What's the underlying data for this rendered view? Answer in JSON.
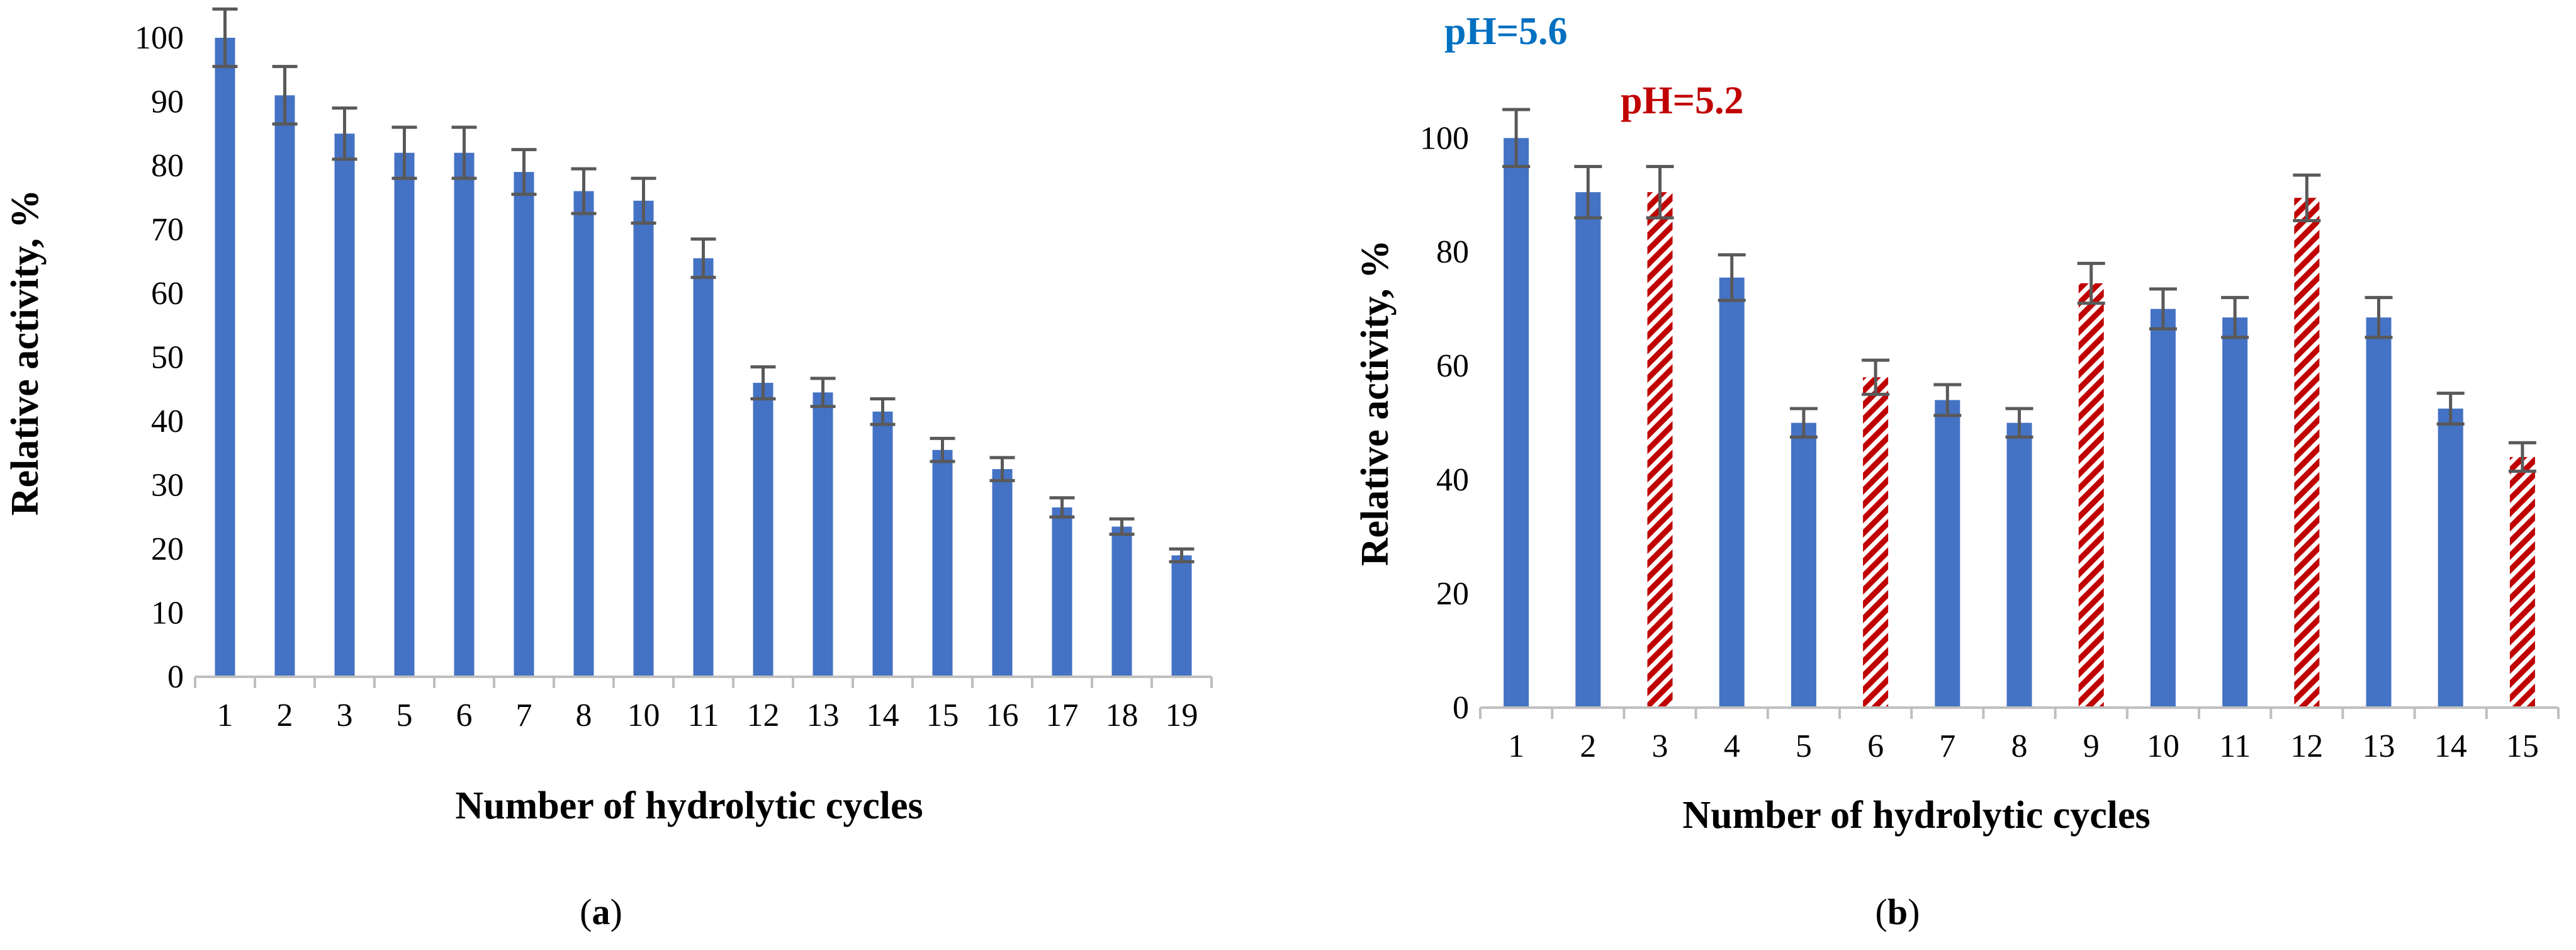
{
  "colors": {
    "blue_bar": "#4472C4",
    "red_bar": "#C00000",
    "error_bar": "#595959",
    "axis": "#BFBFBF",
    "legend_blue": "#0070C0",
    "legend_red": "#C00000"
  },
  "chart_data": [
    {
      "id": "a",
      "type": "bar",
      "panel_label": {
        "prefix": "(",
        "letter": "a",
        "suffix": ")"
      },
      "xlabel": "Number of hydrolytic cycles",
      "ylabel": "Relative activity, %",
      "ylim": [
        0,
        100
      ],
      "yticks": [
        0,
        10,
        20,
        30,
        40,
        50,
        60,
        70,
        80,
        90,
        100
      ],
      "grid": false,
      "categories": [
        "1",
        "2",
        "3",
        "5",
        "6",
        "7",
        "8",
        "10",
        "11",
        "12",
        "13",
        "14",
        "15",
        "16",
        "17",
        "18",
        "19"
      ],
      "values": [
        100,
        91,
        85,
        82,
        82,
        79,
        76,
        74.5,
        65.5,
        46,
        44.5,
        41.5,
        35.5,
        32.5,
        26.5,
        23.5,
        19
      ],
      "errors": [
        4.5,
        4.5,
        4,
        4,
        4,
        3.5,
        3.5,
        3.5,
        3,
        2.5,
        2.2,
        2,
        1.8,
        1.8,
        1.5,
        1.2,
        1
      ]
    },
    {
      "id": "b",
      "type": "bar",
      "panel_label": {
        "prefix": "(",
        "letter": "b",
        "suffix": ")"
      },
      "xlabel": "Number of hydrolytic cycles",
      "ylabel": "Relative activity, %",
      "ylim": [
        0,
        106
      ],
      "yticks": [
        0,
        20,
        40,
        60,
        80,
        100
      ],
      "grid": false,
      "categories": [
        "1",
        "2",
        "3",
        "4",
        "5",
        "6",
        "7",
        "8",
        "9",
        "10",
        "11",
        "12",
        "13",
        "14",
        "15"
      ],
      "values": [
        100,
        90.5,
        90.5,
        75.5,
        50,
        58,
        54,
        50,
        74.5,
        70,
        68.5,
        89.5,
        68.5,
        52.5,
        44
      ],
      "errors": [
        5,
        4.5,
        4.5,
        4,
        2.5,
        3,
        2.7,
        2.5,
        3.5,
        3.5,
        3.5,
        4,
        3.5,
        2.7,
        2.5
      ],
      "series_groups": [
        "pH=5.6",
        "pH=5.6",
        "pH=5.2",
        "pH=5.6",
        "pH=5.6",
        "pH=5.2",
        "pH=5.6",
        "pH=5.6",
        "pH=5.2",
        "pH=5.6",
        "pH=5.6",
        "pH=5.2",
        "pH=5.6",
        "pH=5.6",
        "pH=5.2"
      ],
      "legend": [
        {
          "name": "pH=5.6",
          "style": "solid-blue",
          "color": "#0070C0"
        },
        {
          "name": "pH=5.2",
          "style": "hatched-red",
          "color": "#C00000"
        }
      ]
    }
  ]
}
